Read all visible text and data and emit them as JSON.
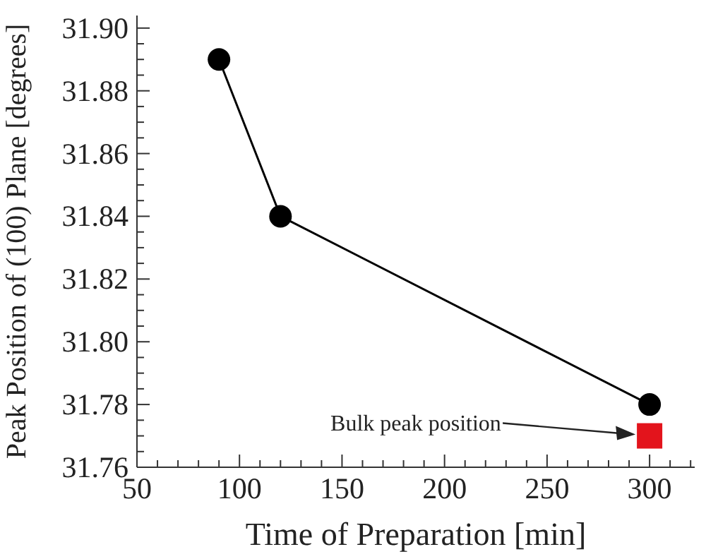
{
  "chart_data": {
    "type": "line",
    "xlabel": "Time of Preparation [min]",
    "ylabel": "Peak Position of (100) Plane [degrees]",
    "xlim": [
      50,
      322
    ],
    "ylim": [
      31.76,
      31.904
    ],
    "xticks": [
      50,
      {
        "value": 60,
        "label": null
      },
      {
        "value": 70,
        "label": null
      },
      {
        "value": 80,
        "label": null
      },
      {
        "value": 90,
        "label": null
      },
      100,
      {
        "value": 110,
        "label": null
      },
      {
        "value": 120,
        "label": null
      },
      {
        "value": 130,
        "label": null
      },
      {
        "value": 140,
        "label": null
      },
      150,
      {
        "value": 160,
        "label": null
      },
      {
        "value": 170,
        "label": null
      },
      {
        "value": 180,
        "label": null
      },
      {
        "value": 190,
        "label": null
      },
      200,
      {
        "value": 210,
        "label": null
      },
      {
        "value": 220,
        "label": null
      },
      {
        "value": 230,
        "label": null
      },
      {
        "value": 240,
        "label": null
      },
      250,
      {
        "value": 260,
        "label": null
      },
      {
        "value": 270,
        "label": null
      },
      {
        "value": 280,
        "label": null
      },
      {
        "value": 290,
        "label": null
      },
      300,
      {
        "value": 310,
        "label": null
      },
      {
        "value": 320,
        "label": null
      }
    ],
    "yticks": [
      {
        "value": 31.76,
        "label": "31.76"
      },
      {
        "value": 31.765,
        "label": null
      },
      {
        "value": 31.77,
        "label": null
      },
      {
        "value": 31.775,
        "label": null
      },
      {
        "value": 31.78,
        "label": "31.78"
      },
      {
        "value": 31.785,
        "label": null
      },
      {
        "value": 31.79,
        "label": null
      },
      {
        "value": 31.795,
        "label": null
      },
      {
        "value": 31.8,
        "label": "31.80"
      },
      {
        "value": 31.805,
        "label": null
      },
      {
        "value": 31.81,
        "label": null
      },
      {
        "value": 31.815,
        "label": null
      },
      {
        "value": 31.82,
        "label": "31.82"
      },
      {
        "value": 31.825,
        "label": null
      },
      {
        "value": 31.83,
        "label": null
      },
      {
        "value": 31.835,
        "label": null
      },
      {
        "value": 31.84,
        "label": "31.84"
      },
      {
        "value": 31.845,
        "label": null
      },
      {
        "value": 31.85,
        "label": null
      },
      {
        "value": 31.855,
        "label": null
      },
      {
        "value": 31.86,
        "label": "31.86"
      },
      {
        "value": 31.865,
        "label": null
      },
      {
        "value": 31.87,
        "label": null
      },
      {
        "value": 31.875,
        "label": null
      },
      {
        "value": 31.88,
        "label": "31.88"
      },
      {
        "value": 31.885,
        "label": null
      },
      {
        "value": 31.89,
        "label": null
      },
      {
        "value": 31.895,
        "label": null
      },
      {
        "value": 31.9,
        "label": "31.90"
      }
    ],
    "grid": false,
    "series": [
      {
        "type": "line",
        "color": "#000000",
        "marker": "circle",
        "line_style": "solid",
        "x": [
          90,
          120,
          300
        ],
        "values": [
          31.89,
          31.84,
          31.78
        ]
      },
      {
        "type": "scatter",
        "color": "#e3141c",
        "marker": "square",
        "x": [
          300
        ],
        "values": [
          31.77
        ]
      }
    ],
    "annotations": [
      "Bulk peak position"
    ]
  }
}
